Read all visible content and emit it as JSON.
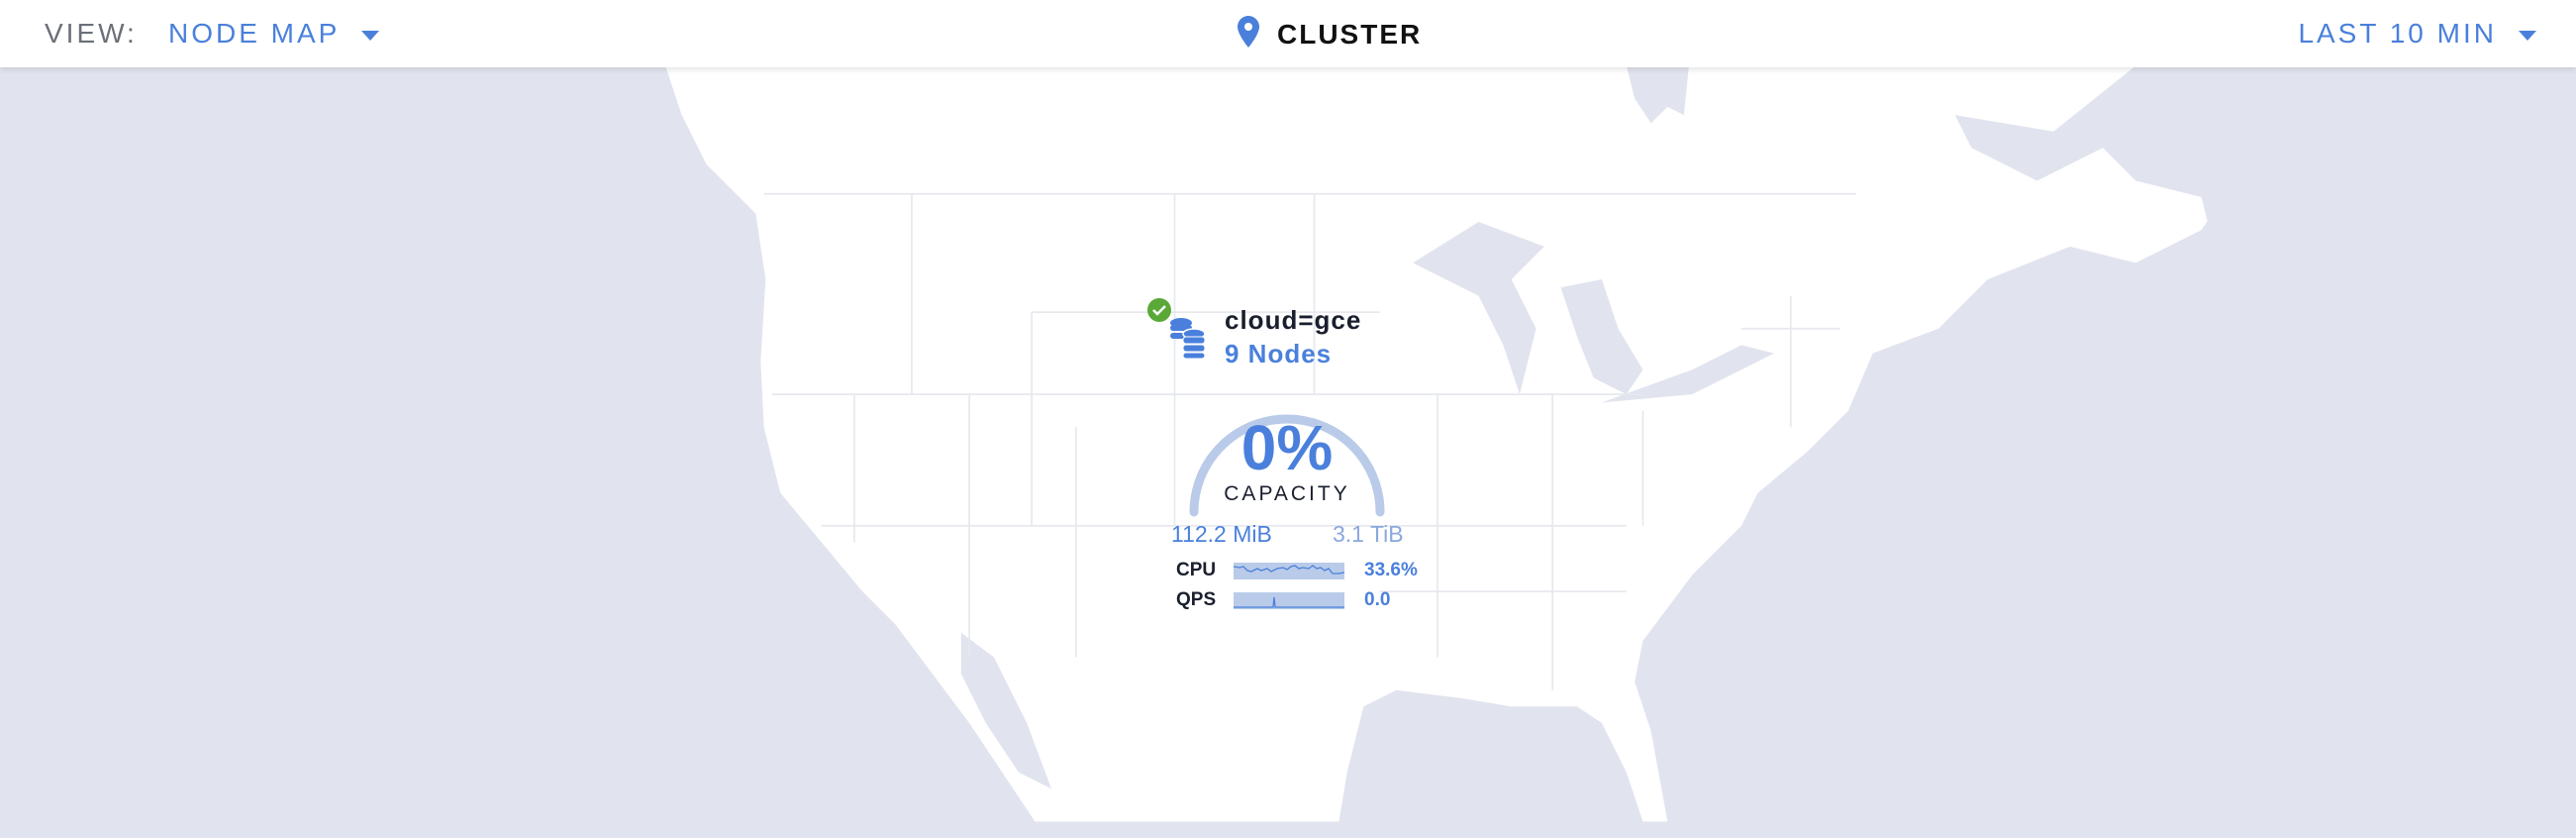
{
  "header": {
    "view_label": "VIEW:",
    "view_value": "NODE MAP",
    "title": "CLUSTER",
    "title_icon": "map-pin-icon",
    "time_range": "LAST 10 MIN"
  },
  "locality": {
    "name": "cloud=gce",
    "nodes": "9 Nodes",
    "status": "healthy",
    "capacity_percent": "0%",
    "capacity_label": "CAPACITY",
    "capacity_fraction": 0.0,
    "used": "112.2 MiB",
    "total": "3.1 TiB",
    "metrics": [
      {
        "label": "CPU",
        "value": "33.6%"
      },
      {
        "label": "QPS",
        "value": "0.0"
      }
    ]
  },
  "colors": {
    "accent": "#4a80dc",
    "ocean": "#e1e4ee",
    "land": "#ffffff",
    "healthy": "#5aa837",
    "gauge_track": "#b9cbe9"
  }
}
